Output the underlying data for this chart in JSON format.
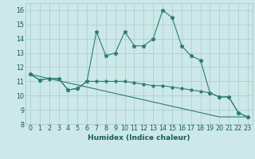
{
  "xlabel": "Humidex (Indice chaleur)",
  "x": [
    0,
    1,
    2,
    3,
    4,
    5,
    6,
    7,
    8,
    9,
    10,
    11,
    12,
    13,
    14,
    15,
    16,
    17,
    18,
    19,
    20,
    21,
    22,
    23
  ],
  "line1": [
    11.5,
    11.1,
    11.2,
    11.2,
    10.4,
    10.5,
    11.0,
    14.5,
    12.8,
    13.0,
    14.5,
    13.5,
    13.5,
    14.0,
    16.0,
    15.5,
    13.5,
    12.8,
    12.5,
    10.2,
    9.9,
    9.9,
    8.8,
    8.5
  ],
  "line2": [
    11.5,
    11.1,
    11.2,
    11.2,
    10.4,
    10.5,
    11.0,
    11.0,
    11.0,
    11.0,
    11.0,
    10.9,
    10.8,
    10.7,
    10.7,
    10.6,
    10.5,
    10.4,
    10.3,
    10.2,
    9.9,
    9.9,
    8.8,
    8.5
  ],
  "line3": [
    11.5,
    11.35,
    11.2,
    11.05,
    10.9,
    10.75,
    10.6,
    10.45,
    10.3,
    10.15,
    10.0,
    9.85,
    9.7,
    9.55,
    9.4,
    9.25,
    9.1,
    8.95,
    8.8,
    8.65,
    8.5,
    8.5,
    8.5,
    8.5
  ],
  "ylim_min": 8,
  "ylim_max": 16.5,
  "yticks": [
    8,
    9,
    10,
    11,
    12,
    13,
    14,
    15,
    16
  ],
  "line_color": "#2e7d6e",
  "bg_color": "#cce8e8",
  "grid_color": "#a8cccc",
  "tick_color": "#1a5a5a",
  "label_fontsize": 6.5,
  "tick_fontsize": 5.8
}
